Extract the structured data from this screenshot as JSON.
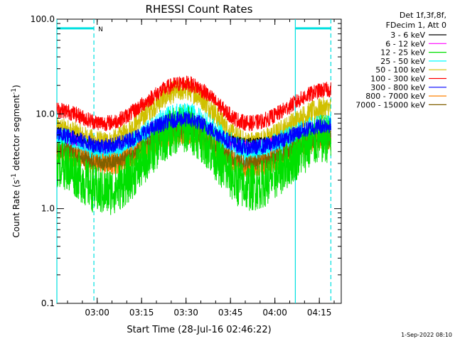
{
  "chart_data": {
    "type": "line",
    "title": "RHESSI Count Rates",
    "xlabel": "Start Time (28-Jul-16 02:46:22)",
    "ylabel_main": "Count Rate (s",
    "ylabel_sup1": "-1",
    "ylabel_mid": " detector segment",
    "ylabel_sup2": "-1",
    "ylabel_end": ")",
    "yscale": "log",
    "ylim": [
      0.1,
      100.0
    ],
    "xlim_minutes": [
      0,
      96
    ],
    "x_ticks": [
      {
        "label": "03:00",
        "t": 13.6
      },
      {
        "label": "03:15",
        "t": 28.6
      },
      {
        "label": "03:30",
        "t": 43.6
      },
      {
        "label": "03:45",
        "t": 58.6
      },
      {
        "label": "04:00",
        "t": 73.6
      },
      {
        "label": "04:15",
        "t": 88.6
      }
    ],
    "y_ticks": [
      {
        "label": "0.1",
        "v": 0.1
      },
      {
        "label": "1.0",
        "v": 1.0
      },
      {
        "label": "10.0",
        "v": 10.0
      },
      {
        "label": "100.0",
        "v": 100.0
      }
    ],
    "legend": {
      "header1": "Det 1f,3f,8f,",
      "header2": "FDecim 1, Att 0",
      "placement": "outside-right"
    },
    "series": [
      {
        "name": "3 - 6 keV",
        "color": "#000000",
        "values": [
          6.0,
          4.2,
          7.4,
          4.6,
          6.5
        ]
      },
      {
        "name": "6 - 12 keV",
        "color": "#ff00ff",
        "values": [
          5.6,
          4.0,
          7.0,
          4.4,
          6.1
        ]
      },
      {
        "name": "12 - 25 keV",
        "color": "#00e000",
        "values": [
          3.0,
          1.5,
          7.0,
          1.7,
          5.5
        ]
      },
      {
        "name": "25 - 50 keV",
        "color": "#00ffff",
        "values": [
          5.0,
          3.6,
          9.2,
          3.8,
          7.0
        ]
      },
      {
        "name": "50 - 100 keV",
        "color": "#d0c000",
        "values": [
          7.0,
          5.0,
          18.0,
          5.0,
          11.5
        ]
      },
      {
        "name": "100 - 300 keV",
        "color": "#ff0000",
        "values": [
          11.0,
          8.0,
          21.0,
          8.0,
          18.0
        ]
      },
      {
        "name": "300 - 800 keV",
        "color": "#0000ff",
        "values": [
          6.0,
          4.6,
          8.8,
          4.4,
          7.6
        ]
      },
      {
        "name": "800 - 7000 keV",
        "color": "#ff8000",
        "values": [
          3.8,
          2.9,
          6.2,
          2.8,
          5.4
        ]
      },
      {
        "name": "7000 - 15000 keV",
        "color": "#806000",
        "values": [
          4.2,
          3.0,
          6.6,
          3.0,
          5.6
        ]
      }
    ],
    "series_times_minutes": [
      0,
      16,
      43,
      65,
      92
    ],
    "shaded_intervals": [
      {
        "start_minutes": 0,
        "end_minutes": 12.5,
        "label": "N"
      },
      {
        "start_minutes": 80.5,
        "end_minutes": 92.5,
        "label": ""
      }
    ],
    "grid": false
  },
  "footer": {
    "timestamp": "1-Sep-2022 08:10"
  }
}
